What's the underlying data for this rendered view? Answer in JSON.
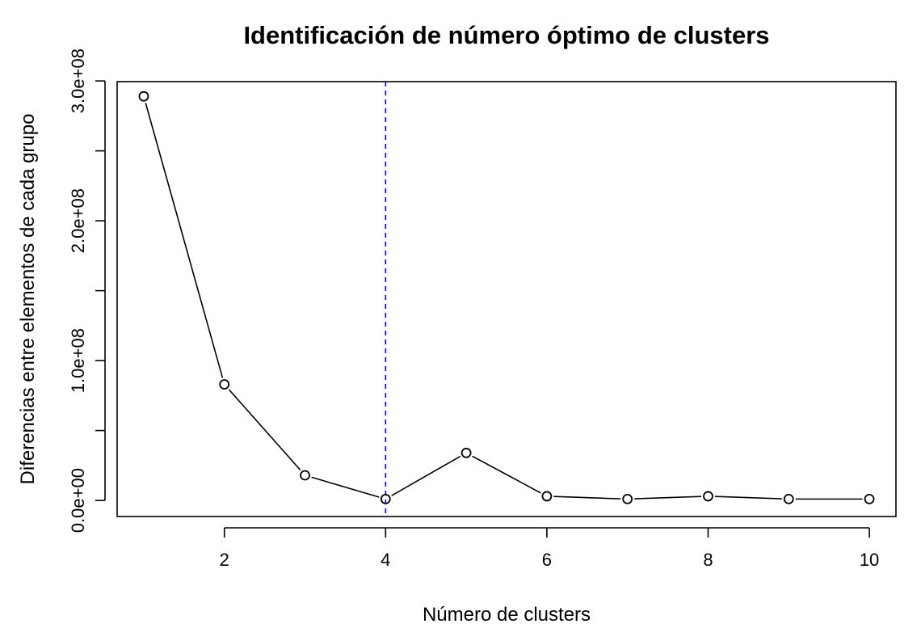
{
  "chart_data": {
    "type": "line",
    "title": "Identificación de número óptimo de clusters",
    "xlabel": "Número de clusters",
    "ylabel": "Diferencias entre elementos de cada grupo",
    "x": [
      1,
      2,
      3,
      4,
      5,
      6,
      7,
      8,
      9,
      10
    ],
    "series": [
      {
        "values": [
          289000000,
          83000000,
          18000000,
          1000000,
          34000000,
          3000000,
          1000000,
          3000000,
          1000000,
          1000000
        ],
        "marker": "open-circle",
        "color": "#000000"
      }
    ],
    "xlim": [
      0.67,
      10.33
    ],
    "ylim": [
      -11500000,
      299500000
    ],
    "x_ticks": [
      2,
      4,
      6,
      8,
      10
    ],
    "x_tick_labels": [
      "2",
      "4",
      "6",
      "8",
      "10"
    ],
    "y_ticks": [
      0,
      50000000,
      100000000,
      150000000,
      200000000,
      250000000,
      300000000
    ],
    "y_tick_labels": [
      "0.0e+00",
      "",
      "1.0e+08",
      "",
      "2.0e+08",
      "",
      "3.0e+08"
    ],
    "reference_line": {
      "orientation": "vertical",
      "x": 4,
      "style": "dashed",
      "color": "#0000FF"
    },
    "grid": false,
    "legend": "none",
    "box": true
  }
}
